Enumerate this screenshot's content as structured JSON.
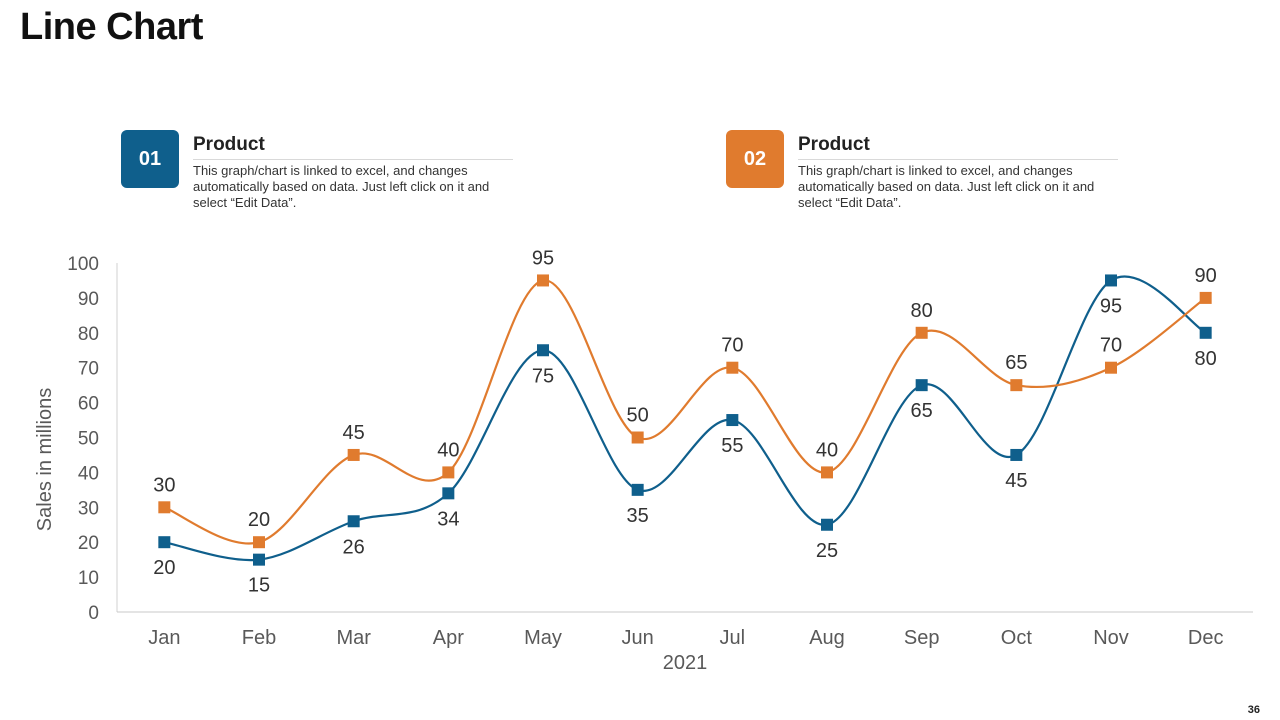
{
  "title": "Line Chart",
  "page_number": "36",
  "legend": [
    {
      "number": "01",
      "heading": "Product",
      "text": "This graph/chart is linked to excel,  and changes automatically based on data. Just left click on it and select “Edit Data”.",
      "color": "#0f5f8c"
    },
    {
      "number": "02",
      "heading": "Product",
      "text": "This graph/chart is linked to excel,  and changes automatically based on data. Just left click on it and select “Edit Data”.",
      "color": "#e07b2e"
    }
  ],
  "chart_data": {
    "type": "line",
    "title": "",
    "xlabel": "2021",
    "ylabel": "Sales in millions",
    "categories": [
      "Jan",
      "Feb",
      "Mar",
      "Apr",
      "May",
      "Jun",
      "Jul",
      "Aug",
      "Sep",
      "Oct",
      "Nov",
      "Dec"
    ],
    "ylim": [
      0,
      100
    ],
    "yticks": [
      0,
      10,
      20,
      30,
      40,
      50,
      60,
      70,
      80,
      90,
      100
    ],
    "grid": false,
    "series": [
      {
        "name": "Product 01",
        "color": "#0f5f8c",
        "values": [
          20,
          15,
          26,
          34,
          75,
          35,
          55,
          25,
          65,
          45,
          95,
          80
        ],
        "label_position": "below"
      },
      {
        "name": "Product 02",
        "color": "#e07b2e",
        "values": [
          30,
          20,
          45,
          40,
          95,
          50,
          70,
          40,
          80,
          65,
          70,
          90
        ],
        "label_position": "above"
      }
    ]
  }
}
